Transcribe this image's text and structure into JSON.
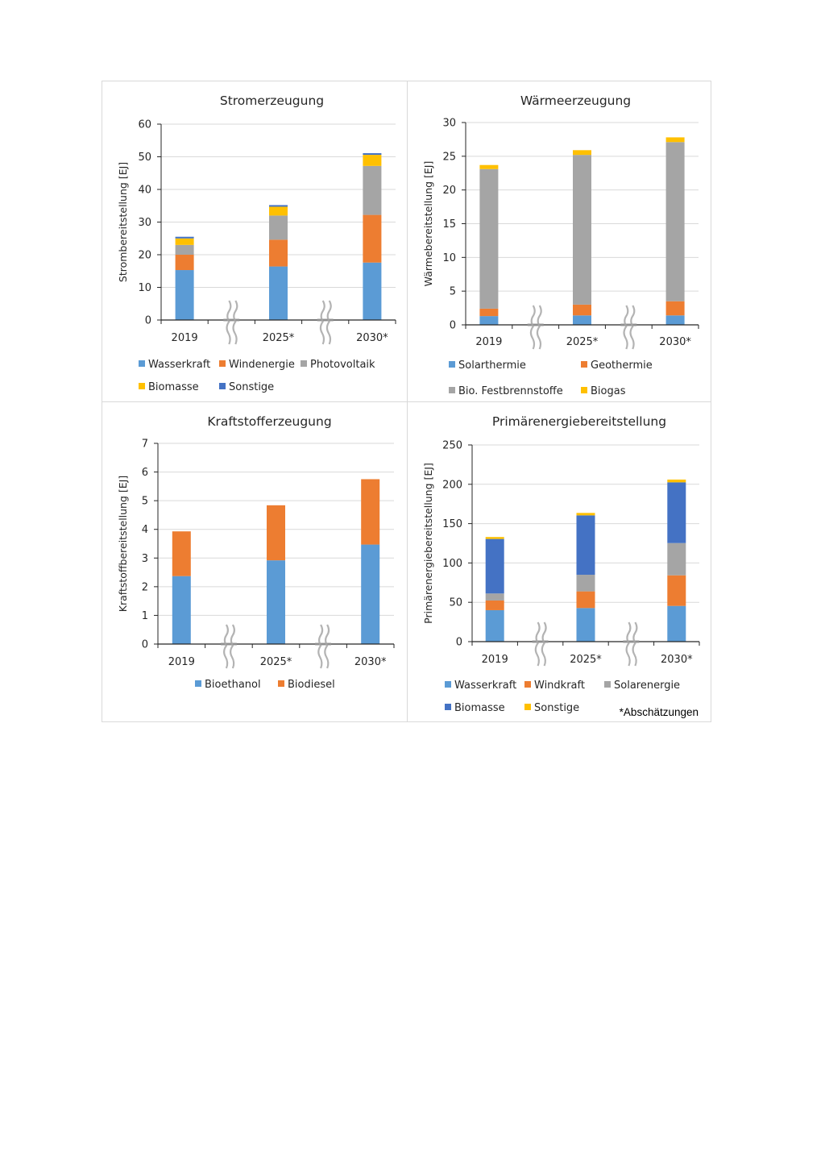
{
  "page": {
    "footnote": "*Abschätzungen"
  },
  "colors": {
    "blue_light": "#5b9bd5",
    "orange": "#ed7d31",
    "gray": "#a5a5a5",
    "yellow": "#ffc000",
    "blue_dark": "#4472c4",
    "gridline": "#d9d9d9",
    "axis": "#262626",
    "break_symbol": "#a6a6a6"
  },
  "chart_data": [
    {
      "id": "strom",
      "type": "bar",
      "stacked": true,
      "title": "Stromerzeugung",
      "xlabel": "",
      "ylabel": "Strombereitstellung [EJ]",
      "categories": [
        "2019",
        "2025*",
        "2030*"
      ],
      "ylim": [
        0,
        60
      ],
      "yticks": [
        "0",
        "10",
        "20",
        "30",
        "40",
        "50",
        "60"
      ],
      "grid": true,
      "axis_breaks_between_categories": true,
      "legend_position": "bottom",
      "series": [
        {
          "name": "Wasserkraft",
          "color": "#5b9bd5",
          "values": [
            15.3,
            16.4,
            17.6
          ]
        },
        {
          "name": "Windenergie",
          "color": "#ed7d31",
          "values": [
            4.7,
            8.2,
            14.6
          ]
        },
        {
          "name": "Photovoltaik",
          "color": "#a5a5a5",
          "values": [
            3.0,
            7.4,
            15.0
          ]
        },
        {
          "name": "Biomasse",
          "color": "#ffc000",
          "values": [
            2.0,
            2.7,
            3.4
          ]
        },
        {
          "name": "Sonstige",
          "color": "#4472c4",
          "values": [
            0.5,
            0.5,
            0.5
          ]
        }
      ]
    },
    {
      "id": "waerme",
      "type": "bar",
      "stacked": true,
      "title": "Wärmeerzeugung",
      "xlabel": "",
      "ylabel": "Wärmebereitstellung [EJ]",
      "categories": [
        "2019",
        "2025*",
        "2030*"
      ],
      "ylim": [
        0,
        30
      ],
      "yticks": [
        "0",
        "5",
        "10",
        "15",
        "20",
        "25",
        "30"
      ],
      "grid": true,
      "axis_breaks_between_categories": true,
      "legend_position": "bottom",
      "series": [
        {
          "name": "Solarthermie",
          "color": "#5b9bd5",
          "values": [
            1.3,
            1.4,
            1.4
          ]
        },
        {
          "name": "Geothermie",
          "color": "#ed7d31",
          "values": [
            1.1,
            1.6,
            2.1
          ]
        },
        {
          "name": "Bio. Festbrennstoffe",
          "color": "#a5a5a5",
          "values": [
            20.7,
            22.2,
            23.6
          ]
        },
        {
          "name": "Biogas",
          "color": "#ffc000",
          "values": [
            0.6,
            0.7,
            0.7
          ]
        }
      ]
    },
    {
      "id": "kraftstoff",
      "type": "bar",
      "stacked": true,
      "title": "Kraftstofferzeugung",
      "xlabel": "",
      "ylabel": "Kraftstoffbereitstellung [EJ]",
      "categories": [
        "2019",
        "2025*",
        "2030*"
      ],
      "ylim": [
        0,
        7
      ],
      "yticks": [
        "0",
        "1",
        "2",
        "3",
        "4",
        "5",
        "6",
        "7"
      ],
      "grid": true,
      "axis_breaks_between_categories": true,
      "legend_position": "bottom",
      "series": [
        {
          "name": "Bioethanol",
          "color": "#5b9bd5",
          "values": [
            2.37,
            2.92,
            3.47
          ]
        },
        {
          "name": "Biodiesel",
          "color": "#ed7d31",
          "values": [
            1.56,
            1.92,
            2.28
          ]
        }
      ]
    },
    {
      "id": "primaer",
      "type": "bar",
      "stacked": true,
      "title": "Primärenergiebereitstellung",
      "xlabel": "",
      "ylabel": "Primärenergiebereitstellung [EJ]",
      "categories": [
        "2019",
        "2025*",
        "2030*"
      ],
      "ylim": [
        0,
        250
      ],
      "yticks": [
        "0",
        "50",
        "100",
        "150",
        "200",
        "250"
      ],
      "grid": true,
      "axis_breaks_between_categories": true,
      "legend_position": "bottom",
      "series": [
        {
          "name": "Wasserkraft",
          "color": "#5b9bd5",
          "values": [
            40,
            42.7,
            45.4
          ]
        },
        {
          "name": "Windkraft",
          "color": "#ed7d31",
          "values": [
            12.3,
            21.2,
            38.9
          ]
        },
        {
          "name": "Solarenergie",
          "color": "#a5a5a5",
          "values": [
            8.9,
            21.1,
            41.0
          ]
        },
        {
          "name": "Biomasse",
          "color": "#4472c4",
          "values": [
            69.3,
            75.5,
            77.2
          ]
        },
        {
          "name": "Sonstige",
          "color": "#ffc000",
          "values": [
            2.5,
            3.1,
            3.5
          ]
        }
      ]
    }
  ]
}
